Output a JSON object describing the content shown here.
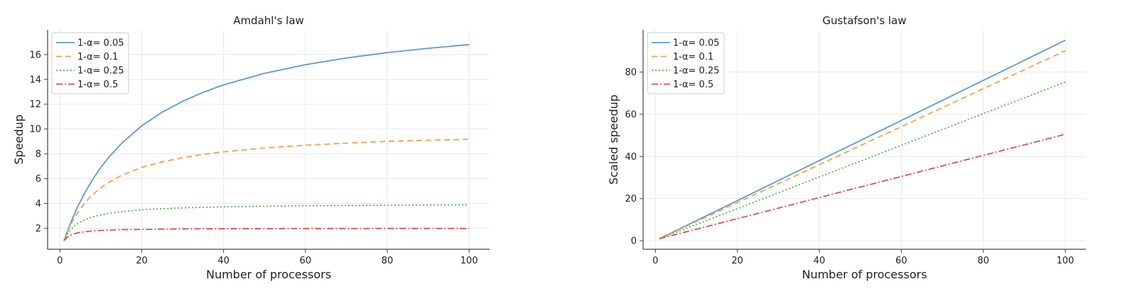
{
  "chart_data": [
    {
      "type": "line",
      "title": "Amdahl's law",
      "xlabel": "Number of processors",
      "ylabel": "Speedup",
      "xlim": [
        -3,
        105
      ],
      "ylim": [
        0.3,
        18.0
      ],
      "xticks": [
        0,
        20,
        40,
        60,
        80,
        100
      ],
      "yticks": [
        2,
        4,
        6,
        8,
        10,
        12,
        14,
        16
      ],
      "grid": true,
      "legend_position": "top-left",
      "x": [
        1,
        2,
        3,
        4,
        5,
        6,
        8,
        10,
        12,
        15,
        20,
        25,
        30,
        35,
        40,
        50,
        60,
        70,
        80,
        90,
        100
      ],
      "series": [
        {
          "name": "1-α= 0.05",
          "color": "#5a9bd4",
          "style": "solid",
          "values": [
            1.0,
            1.9,
            2.73,
            3.48,
            4.17,
            4.8,
            5.93,
            6.9,
            7.74,
            8.82,
            10.26,
            11.36,
            12.24,
            12.96,
            13.56,
            14.49,
            15.19,
            15.73,
            16.16,
            16.51,
            16.81
          ]
        },
        {
          "name": "1-α= 0.1",
          "color": "#f5a04a",
          "style": "dashed",
          "values": [
            1.0,
            1.82,
            2.5,
            3.08,
            3.57,
            4.0,
            4.71,
            5.26,
            5.71,
            6.25,
            6.9,
            7.35,
            7.69,
            7.95,
            8.16,
            8.47,
            8.7,
            8.86,
            9.0,
            9.09,
            9.17
          ]
        },
        {
          "name": "1-α= 0.25",
          "color": "#58b058",
          "style": "dotted",
          "values": [
            1.0,
            1.6,
            2.0,
            2.29,
            2.5,
            2.67,
            2.91,
            3.08,
            3.2,
            3.33,
            3.48,
            3.57,
            3.64,
            3.68,
            3.72,
            3.77,
            3.81,
            3.83,
            3.85,
            3.87,
            3.88
          ]
        },
        {
          "name": "1-α= 0.5",
          "color": "#d9534f",
          "style": "dashdot",
          "values": [
            1.0,
            1.33,
            1.5,
            1.6,
            1.67,
            1.71,
            1.78,
            1.82,
            1.85,
            1.88,
            1.9,
            1.92,
            1.94,
            1.95,
            1.95,
            1.96,
            1.97,
            1.97,
            1.98,
            1.98,
            1.98
          ]
        }
      ]
    },
    {
      "type": "line",
      "title": "Gustafson's law",
      "xlabel": "Number of processors",
      "ylabel": "Scaled speedup",
      "xlim": [
        -3,
        105
      ],
      "ylim": [
        -4,
        100
      ],
      "xticks": [
        0,
        20,
        40,
        60,
        80,
        100
      ],
      "yticks": [
        0,
        20,
        40,
        60,
        80
      ],
      "grid": true,
      "legend_position": "top-left",
      "x": [
        1,
        100
      ],
      "series": [
        {
          "name": "1-α= 0.05",
          "color": "#5a9bd4",
          "style": "solid",
          "values": [
            1.0,
            95.05
          ]
        },
        {
          "name": "1-α= 0.1",
          "color": "#f5a04a",
          "style": "dashed",
          "values": [
            1.0,
            90.1
          ]
        },
        {
          "name": "1-α= 0.25",
          "color": "#58b058",
          "style": "dotted",
          "values": [
            1.0,
            75.25
          ]
        },
        {
          "name": "1-α= 0.5",
          "color": "#d9534f",
          "style": "dashdot",
          "values": [
            1.0,
            50.5
          ]
        }
      ]
    }
  ]
}
